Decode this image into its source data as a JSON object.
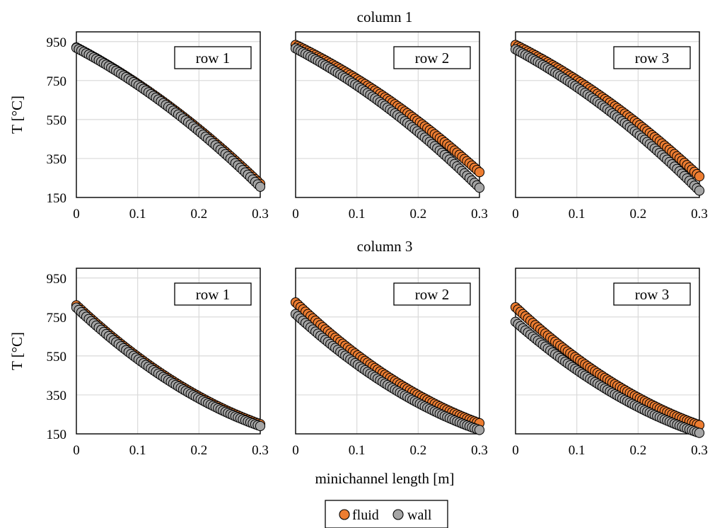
{
  "figure": {
    "x_axis_label": "minichannel length [m]",
    "legend": [
      {
        "name": "fluid",
        "color": "#ED7D31"
      },
      {
        "name": "wall",
        "color": "#A5A5A5"
      }
    ]
  },
  "chart_data": [
    {
      "type": "scatter",
      "group": "column 1",
      "label": "row 1",
      "ylabel": "T [°C]",
      "xlim": [
        0,
        0.3
      ],
      "ylim": [
        150,
        1000
      ],
      "x_ticks": [
        "0",
        "0.1",
        "0.2",
        "0.3"
      ],
      "y_ticks": [
        "150",
        "350",
        "550",
        "750",
        "950"
      ],
      "grid": true,
      "series": [
        {
          "name": "fluid",
          "color": "#ED7D31",
          "x_start": 0,
          "x_end": 0.3,
          "y_start": 920,
          "y_end": 220,
          "curvature": 0.3
        },
        {
          "name": "wall",
          "color": "#A5A5A5",
          "x_start": 0,
          "x_end": 0.3,
          "y_start": 918,
          "y_end": 205,
          "curvature": 0.3
        }
      ]
    },
    {
      "type": "scatter",
      "group": "column 1",
      "label": "row 2",
      "ylabel": "",
      "xlim": [
        0,
        0.3
      ],
      "ylim": [
        150,
        1000
      ],
      "x_ticks": [
        "0",
        "0.1",
        "0.2",
        "0.3"
      ],
      "y_ticks": [
        "150",
        "350",
        "550",
        "750",
        "950"
      ],
      "grid": true,
      "series": [
        {
          "name": "fluid",
          "color": "#ED7D31",
          "x_start": 0,
          "x_end": 0.3,
          "y_start": 933,
          "y_end": 280,
          "curvature": 0.3
        },
        {
          "name": "wall",
          "color": "#A5A5A5",
          "x_start": 0,
          "x_end": 0.3,
          "y_start": 915,
          "y_end": 200,
          "curvature": 0.3
        }
      ]
    },
    {
      "type": "scatter",
      "group": "column 1",
      "label": "row 3",
      "ylabel": "",
      "xlim": [
        0,
        0.3
      ],
      "ylim": [
        150,
        1000
      ],
      "x_ticks": [
        "0",
        "0.1",
        "0.2",
        "0.3"
      ],
      "y_ticks": [
        "150",
        "350",
        "550",
        "750",
        "950"
      ],
      "grid": true,
      "series": [
        {
          "name": "fluid",
          "color": "#ED7D31",
          "x_start": 0,
          "x_end": 0.3,
          "y_start": 933,
          "y_end": 258,
          "curvature": 0.3
        },
        {
          "name": "wall",
          "color": "#A5A5A5",
          "x_start": 0,
          "x_end": 0.3,
          "y_start": 910,
          "y_end": 185,
          "curvature": 0.3
        }
      ]
    },
    {
      "type": "scatter",
      "group": "column 3",
      "label": "row 1",
      "ylabel": "T [°C]",
      "xlim": [
        0,
        0.3
      ],
      "ylim": [
        150,
        1000
      ],
      "x_ticks": [
        "0",
        "0.1",
        "0.2",
        "0.3"
      ],
      "y_ticks": [
        "150",
        "350",
        "550",
        "750",
        "950"
      ],
      "grid": true,
      "series": [
        {
          "name": "fluid",
          "color": "#ED7D31",
          "x_start": 0,
          "x_end": 0.3,
          "y_start": 810,
          "y_end": 200,
          "curvature": -0.45
        },
        {
          "name": "wall",
          "color": "#A5A5A5",
          "x_start": 0,
          "x_end": 0.3,
          "y_start": 798,
          "y_end": 190,
          "curvature": -0.45
        }
      ]
    },
    {
      "type": "scatter",
      "group": "column 3",
      "label": "row 2",
      "ylabel": "",
      "xlim": [
        0,
        0.3
      ],
      "ylim": [
        150,
        1000
      ],
      "x_ticks": [
        "0",
        "0.1",
        "0.2",
        "0.3"
      ],
      "y_ticks": [
        "150",
        "350",
        "550",
        "750",
        "950"
      ],
      "grid": true,
      "series": [
        {
          "name": "fluid",
          "color": "#ED7D31",
          "x_start": 0,
          "x_end": 0.3,
          "y_start": 825,
          "y_end": 205,
          "curvature": -0.45
        },
        {
          "name": "wall",
          "color": "#A5A5A5",
          "x_start": 0,
          "x_end": 0.3,
          "y_start": 765,
          "y_end": 170,
          "curvature": -0.45
        }
      ]
    },
    {
      "type": "scatter",
      "group": "column 3",
      "label": "row 3",
      "ylabel": "",
      "xlim": [
        0,
        0.3
      ],
      "ylim": [
        150,
        1000
      ],
      "x_ticks": [
        "0",
        "0.1",
        "0.2",
        "0.3"
      ],
      "y_ticks": [
        "150",
        "350",
        "550",
        "750",
        "950"
      ],
      "grid": true,
      "series": [
        {
          "name": "fluid",
          "color": "#ED7D31",
          "x_start": 0,
          "x_end": 0.3,
          "y_start": 800,
          "y_end": 195,
          "curvature": -0.45
        },
        {
          "name": "wall",
          "color": "#A5A5A5",
          "x_start": 0,
          "x_end": 0.3,
          "y_start": 725,
          "y_end": 155,
          "curvature": -0.45
        }
      ]
    }
  ]
}
